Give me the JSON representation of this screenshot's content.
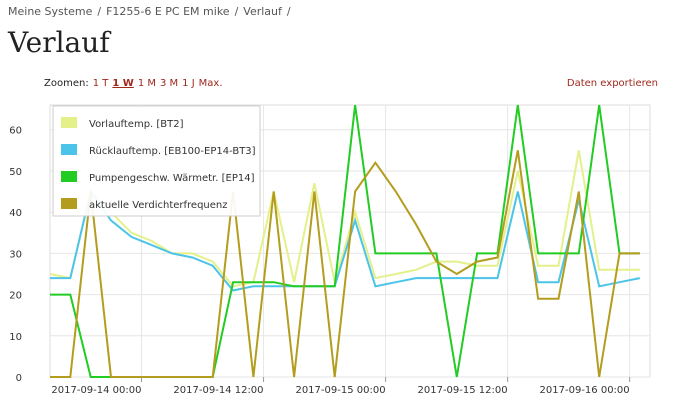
{
  "breadcrumb": {
    "items": [
      "Meine Systeme",
      "F1255-6 E PC EM mike",
      "Verlauf"
    ],
    "separator": "/"
  },
  "header": {
    "title": "Verlauf"
  },
  "zoom": {
    "label": "Zoomen:",
    "options": [
      "1 T",
      "1 W",
      "1 M",
      "3 M",
      "1 J",
      "Max."
    ],
    "active": 1
  },
  "export": "Daten exportieren",
  "chart_data": {
    "type": "line",
    "x": [
      "2017-09-13 15:00",
      "2017-09-13 17:00",
      "2017-09-13 19:00",
      "2017-09-13 21:00",
      "2017-09-13 23:00",
      "2017-09-14 01:00",
      "2017-09-14 03:00",
      "2017-09-14 05:00",
      "2017-09-14 07:00",
      "2017-09-14 09:00",
      "2017-09-14 11:00",
      "2017-09-14 13:00",
      "2017-09-14 15:00",
      "2017-09-14 17:00",
      "2017-09-14 19:00",
      "2017-09-14 21:00",
      "2017-09-14 23:00",
      "2017-09-15 01:00",
      "2017-09-15 03:00",
      "2017-09-15 05:00",
      "2017-09-15 07:00",
      "2017-09-15 09:00",
      "2017-09-15 11:00",
      "2017-09-15 13:00",
      "2017-09-15 15:00",
      "2017-09-15 17:00",
      "2017-09-15 19:00",
      "2017-09-15 21:00",
      "2017-09-15 23:00",
      "2017-09-16 01:00"
    ],
    "series": [
      {
        "name": "Vorlauftemp. [BT2]",
        "color": "#e4f08a",
        "values": [
          25,
          24,
          45,
          40,
          35,
          33,
          30,
          30,
          28,
          22,
          23,
          45,
          23,
          47,
          23,
          40,
          24,
          25,
          26,
          28,
          28,
          27,
          27,
          50,
          27,
          27,
          55,
          26,
          26,
          26
        ]
      },
      {
        "name": "Rücklauftemp. [EB100-EP14-BT3]",
        "color": "#4cc4ea",
        "values": [
          24,
          24,
          45,
          38,
          34,
          32,
          30,
          29,
          27,
          21,
          22,
          22,
          22,
          22,
          22,
          38,
          22,
          23,
          24,
          24,
          24,
          24,
          24,
          45,
          23,
          23,
          43,
          22,
          23,
          24
        ]
      },
      {
        "name": "Pumpengeschw. Wärmetr. [EP14]",
        "color": "#22cc22",
        "values": [
          20,
          20,
          0,
          0,
          0,
          0,
          0,
          0,
          0,
          23,
          23,
          23,
          22,
          22,
          22,
          66,
          30,
          30,
          30,
          30,
          0,
          30,
          30,
          66,
          30,
          30,
          30,
          66,
          30,
          30
        ]
      },
      {
        "name": "aktuelle Verdichterfrequenz",
        "color": "#b39c1e",
        "values": [
          0,
          0,
          45,
          0,
          0,
          0,
          0,
          0,
          0,
          45,
          0,
          45,
          0,
          45,
          0,
          45,
          52,
          45,
          37,
          28,
          25,
          28,
          29,
          55,
          19,
          19,
          45,
          0,
          30,
          30
        ]
      }
    ],
    "xlim": [
      "2017-09-13 15:00",
      "2017-09-16 02:00"
    ],
    "xticks": [
      "2017-09-14 00:00",
      "2017-09-14 12:00",
      "2017-09-15 00:00",
      "2017-09-15 12:00",
      "2017-09-16 00:00"
    ],
    "ylim": [
      0,
      66
    ],
    "yticks": [
      0,
      10,
      20,
      30,
      40,
      50,
      60
    ],
    "grid": true,
    "legend": "upper left"
  }
}
